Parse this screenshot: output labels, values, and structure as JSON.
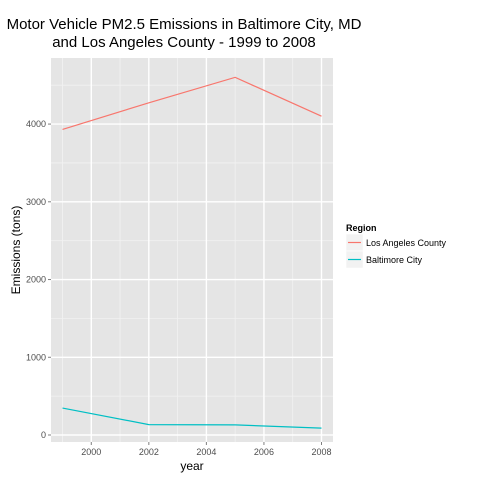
{
  "chart_data": {
    "type": "line",
    "title_line1": "Motor Vehicle PM2.5 Emissions in Baltimore City, MD",
    "title_line2": "and Los Angeles County - 1999 to 2008",
    "xlabel": "year",
    "ylabel": "Emissions (tons)",
    "xlim": [
      1998.6,
      2008.4
    ],
    "ylim": [
      -90,
      4850
    ],
    "x_ticks": [
      2000,
      2002,
      2004,
      2006,
      2008
    ],
    "y_ticks": [
      0,
      1000,
      2000,
      3000,
      4000
    ],
    "grid": true,
    "legend": {
      "title": "Region",
      "placement": "right"
    },
    "x": [
      1999,
      2002,
      2005,
      2008
    ],
    "series": [
      {
        "name": "Los Angeles County",
        "color": "#F8766D",
        "values": [
          3931,
          4274,
          4601,
          4101
        ]
      },
      {
        "name": "Baltimore City",
        "color": "#00BFC4",
        "values": [
          347,
          134,
          130,
          88
        ]
      }
    ],
    "colors": {
      "panel_bg": "#E5E5E5",
      "grid_major": "#FFFFFF",
      "grid_minor": "#F2F2F2",
      "tick_text": "#4D4D4D"
    }
  }
}
